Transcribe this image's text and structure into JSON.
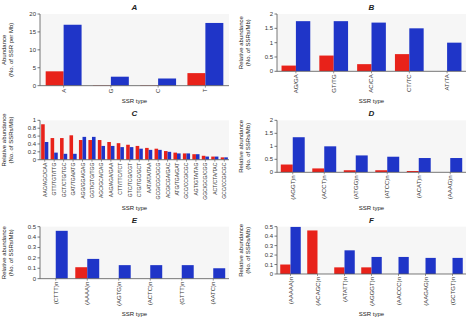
{
  "chart_data": [
    {
      "type": "bar",
      "title": "A",
      "categories": [
        "A",
        "G",
        "C",
        "T"
      ],
      "series": [
        {
          "color": "#e8221a",
          "values": [
            4,
            0.1,
            0.1,
            3.5
          ]
        },
        {
          "color": "#1f35c8",
          "values": [
            17,
            2.5,
            2,
            17.5
          ]
        }
      ],
      "xlabel": "SSR type",
      "ylabel": "Abundance\n(No. of SSR per Mb)",
      "ylim": [
        0,
        20
      ],
      "yticks": [
        0,
        5,
        10,
        15,
        20
      ]
    },
    {
      "type": "bar",
      "title": "B",
      "categories": [
        "AG/GA",
        "GT/TG",
        "AC/CA",
        "CT/TC",
        "AT/TA"
      ],
      "series": [
        {
          "color": "#e8221a",
          "values": [
            0.2,
            0.55,
            0.25,
            0.6,
            0.0
          ]
        },
        {
          "color": "#1f35c8",
          "values": [
            1.75,
            1.75,
            1.7,
            1.5,
            1.0
          ]
        }
      ],
      "xlabel": "SSR type",
      "ylabel": "Relative abundance\n(No. of SSRs/Mb)",
      "ylim": [
        0,
        2
      ],
      "yticks": [
        0,
        0.5,
        1,
        1.5,
        2
      ]
    },
    {
      "type": "bar",
      "title": "C",
      "categories": [
        "AAC/AGC/CAA",
        "GTT/TGT/TTG",
        "GCT/CTG/TGC",
        "GAT/TGA/ATG",
        "AGG/GGA/GAG",
        "GGT/GTG/TGG",
        "AGC/GCA/CAG",
        "AAG/AGA/GAA",
        "CTT/TTC/TCT",
        "GTC/TCG/CGT",
        "CTG/TGC/GCT",
        "AAT/ATA/TAA",
        "GCG/CGC/GCG",
        "ACG/CGA/GAC",
        "ATG/TGA/GAT",
        "GCC/CCG/CGC",
        "AGT/GTA/TAG",
        "GGC/GCG/CGG",
        "ACT/CTA/TAC",
        "GCC/CCG/CGC"
      ],
      "series": [
        {
          "color": "#e8221a",
          "values": [
            0.9,
            0.55,
            0.55,
            0.62,
            0.5,
            0.5,
            0.5,
            0.45,
            0.42,
            0.38,
            0.35,
            0.3,
            0.28,
            0.22,
            0.18,
            0.16,
            0.14,
            0.1,
            0.08,
            0.06
          ]
        },
        {
          "color": "#1f35c8",
          "values": [
            0.45,
            0.18,
            0.15,
            0.15,
            0.58,
            0.58,
            0.35,
            0.35,
            0.32,
            0.32,
            0.28,
            0.25,
            0.25,
            0.2,
            0.16,
            0.16,
            0.14,
            0.08,
            0.08,
            0.06
          ]
        }
      ],
      "xlabel": "SSR type",
      "ylabel": "Relative abundance\n(No. of SSRs/Mb)",
      "ylim": [
        0,
        1
      ],
      "yticks": [
        0,
        0.2,
        0.4,
        0.6,
        0.8,
        1
      ]
    },
    {
      "type": "bar",
      "title": "D",
      "categories": [
        "(AGGT)n",
        "(ACCT)n",
        "(ATGG)n",
        "(ATCC)n",
        "(ACAT)n",
        "(AAAG)n"
      ],
      "series": [
        {
          "color": "#e8221a",
          "values": [
            0.3,
            0.15,
            0.08,
            0.08,
            0.05,
            0.0
          ]
        },
        {
          "color": "#1f35c8",
          "values": [
            1.35,
            1.0,
            0.65,
            0.6,
            0.55,
            0.55
          ]
        }
      ],
      "xlabel": "SSR type",
      "ylabel": "Relative abundance\n(No. of SSRs/Mb)",
      "ylim": [
        0,
        2
      ],
      "yticks": [
        0,
        0.5,
        1,
        1.5,
        2
      ]
    },
    {
      "type": "bar",
      "title": "E",
      "categories": [
        "(CTTT)n",
        "(AAAA)n",
        "(AGTG)n",
        "(ACTC)n",
        "(GTTT)n",
        "(AATC)n"
      ],
      "series": [
        {
          "color": "#e8221a",
          "values": [
            0.0,
            0.11,
            0.0,
            0.0,
            0.0,
            0.0
          ]
        },
        {
          "color": "#1f35c8",
          "values": [
            0.46,
            0.19,
            0.13,
            0.13,
            0.13,
            0.1
          ]
        }
      ],
      "xlabel": "SSR type",
      "ylabel": "Relative abundance\n(No. of SSRs/Mb)",
      "ylim": [
        0,
        0.5
      ],
      "yticks": [
        0,
        0.1,
        0.2,
        0.3,
        0.4,
        0.5
      ]
    },
    {
      "type": "bar",
      "title": "F",
      "categories": [
        "(AAAAA)n",
        "(ACAGC)n",
        "(ATATT)n",
        "(AGGGT)n",
        "(AACCC)n",
        "(AAGAG)n",
        "(GCTGT)n"
      ],
      "series": [
        {
          "color": "#e8221a",
          "values": [
            0.1,
            0.46,
            0.07,
            0.07,
            0.0,
            0.0,
            0.0
          ]
        },
        {
          "color": "#1f35c8",
          "values": [
            0.5,
            0.0,
            0.25,
            0.18,
            0.18,
            0.17,
            0.17
          ]
        }
      ],
      "xlabel": "SSR type",
      "ylabel": "Relative abundance\n(No. of SSRs/Mb)",
      "ylim": [
        0,
        0.5
      ],
      "yticks": [
        0,
        0.1,
        0.2,
        0.3,
        0.4,
        0.5
      ]
    }
  ]
}
